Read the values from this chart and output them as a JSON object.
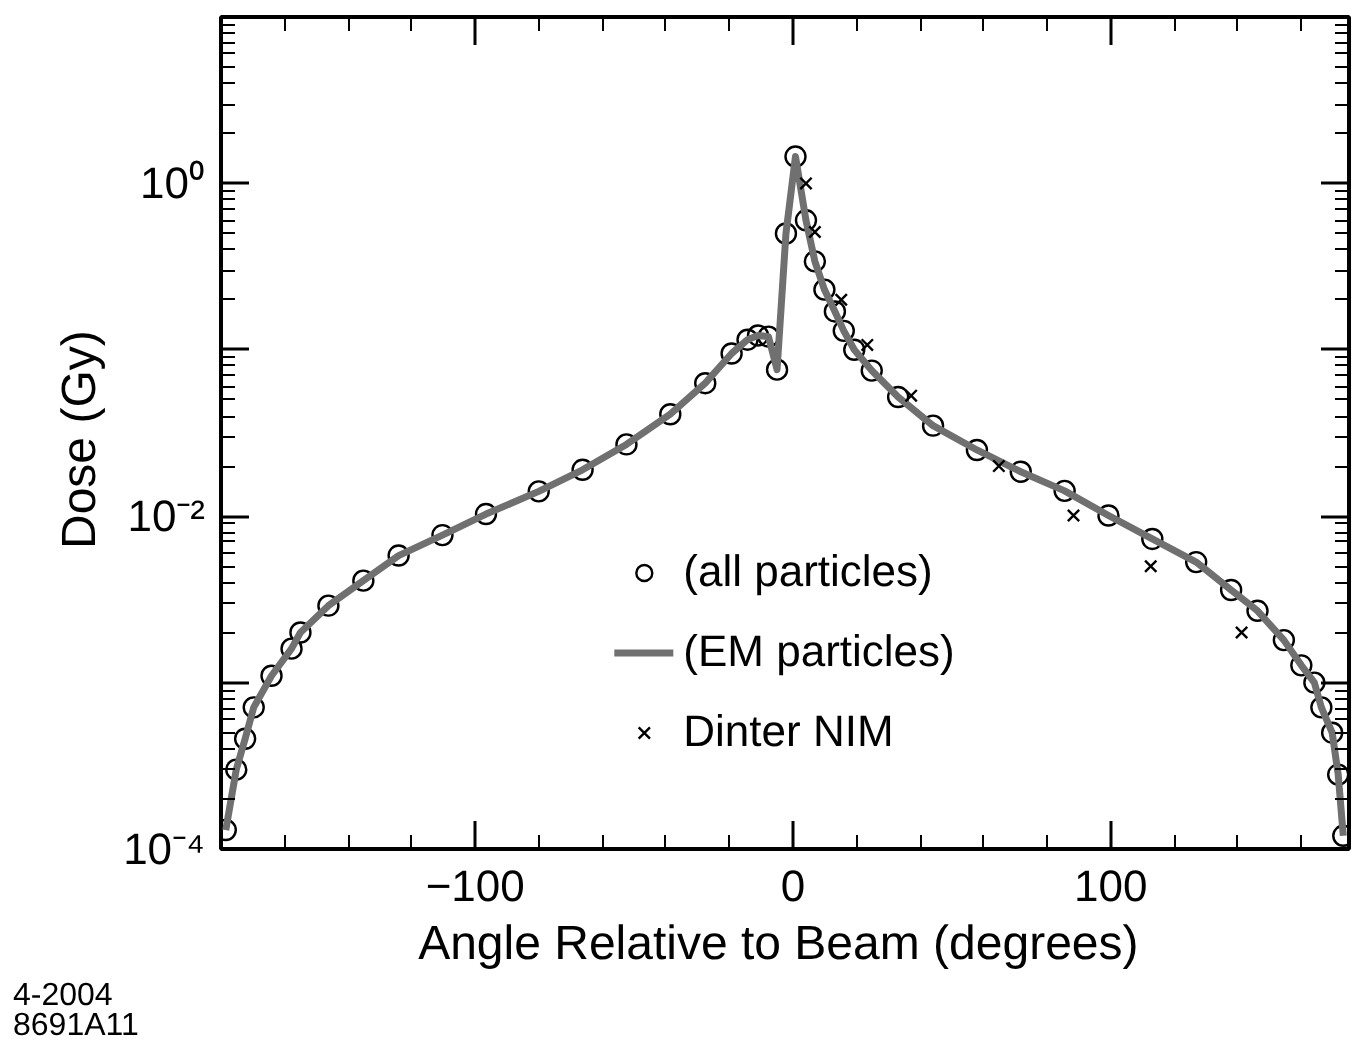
{
  "chart_data": {
    "type": "scatter",
    "xlabel": "Angle Relative to Beam  (degrees)",
    "ylabel": "Dose  (Gy)",
    "annotations": [
      "4-2004",
      "8691A11"
    ],
    "log": "y",
    "xlim": [
      -180,
      175
    ],
    "ylim": [
      0.0001,
      10
    ],
    "xticks": [
      {
        "value": -100,
        "label": "−100"
      },
      0,
      100
    ],
    "yticks": [
      {
        "value": 0.0001,
        "label": "10⁻⁴"
      },
      {
        "value": 0.001,
        "label": null
      },
      {
        "value": 0.01,
        "label": "10⁻²"
      },
      {
        "value": 0.1,
        "label": null
      },
      {
        "value": 1,
        "label": "10⁰"
      },
      {
        "value": 10,
        "label": null
      }
    ],
    "grid": false,
    "legend": "bottom",
    "series": [
      {
        "name": "(all particles)",
        "marker": "circle",
        "color": "#000000",
        "x": [
          -178.5,
          -175.2,
          -172.4,
          -169.7,
          -164.1,
          -157.8,
          -155,
          -146.2,
          -135.2,
          -124.1,
          -110.3,
          -96.6,
          -80,
          -66.2,
          -52.4,
          -38.6,
          -27.6,
          -19.3,
          -14.3,
          -11,
          -7.7,
          -5,
          -2.2,
          0.8,
          4.1,
          6.9,
          9.9,
          13.2,
          16,
          19.3,
          24.8,
          33.1,
          44.1,
          57.9,
          71.7,
          85.5,
          99.3,
          113.1,
          126.9,
          137.9,
          146.2,
          154.5,
          160,
          164.1,
          166.3,
          169.7,
          171.6,
          173.2
        ],
        "values": [
          0.00013,
          0.0003,
          0.00046,
          0.00071,
          0.0011,
          0.0016,
          0.002,
          0.0029,
          0.0041,
          0.0058,
          0.0077,
          0.0103,
          0.0141,
          0.019,
          0.027,
          0.041,
          0.063,
          0.095,
          0.115,
          0.122,
          0.12,
          0.076,
          0.5,
          1.45,
          0.6,
          0.34,
          0.23,
          0.17,
          0.13,
          0.1,
          0.075,
          0.052,
          0.035,
          0.025,
          0.0185,
          0.0142,
          0.0101,
          0.0073,
          0.0053,
          0.0036,
          0.0027,
          0.0018,
          0.00127,
          0.001,
          0.00071,
          0.0005,
          0.00028,
          0.00012
        ]
      },
      {
        "name": "(EM particles)",
        "type": "line",
        "line_style": "solid",
        "color": "#707070",
        "x": [
          -178.5,
          -175.2,
          -172.4,
          -169.7,
          -164.1,
          -157.8,
          -155,
          -146.2,
          -135.2,
          -124.1,
          -110.3,
          -96.6,
          -80,
          -66.2,
          -52.4,
          -38.6,
          -27.6,
          -19.3,
          -14.3,
          -11,
          -7.7,
          -5,
          -2.2,
          0.8,
          4.1,
          6.9,
          9.9,
          13.2,
          16,
          19.3,
          24.8,
          33.1,
          44.1,
          57.9,
          71.7,
          85.5,
          99.3,
          113.1,
          126.9,
          137.9,
          146.2,
          154.5,
          160,
          164.1,
          166.3,
          169.7,
          171.6,
          173.2
        ],
        "values": [
          0.00013,
          0.0003,
          0.00046,
          0.00071,
          0.0011,
          0.0016,
          0.002,
          0.0029,
          0.0041,
          0.0058,
          0.0077,
          0.0103,
          0.0141,
          0.019,
          0.027,
          0.041,
          0.063,
          0.095,
          0.115,
          0.122,
          0.12,
          0.076,
          0.5,
          1.45,
          0.6,
          0.34,
          0.23,
          0.17,
          0.13,
          0.1,
          0.075,
          0.052,
          0.035,
          0.025,
          0.0185,
          0.0142,
          0.0101,
          0.0073,
          0.0053,
          0.0036,
          0.0027,
          0.0018,
          0.00127,
          0.001,
          0.00071,
          0.0005,
          0.00028,
          0.00012
        ]
      },
      {
        "name": "Dinter NIM",
        "marker": "cross",
        "color": "#000000",
        "x": [
          4.1,
          6.9,
          15.2,
          23.4,
          37.2,
          64.8,
          88.3,
          112.6,
          141.2
        ],
        "values": [
          1.0,
          0.51,
          0.2,
          0.107,
          0.053,
          0.02,
          0.0101,
          0.005,
          0.002
        ]
      }
    ]
  }
}
